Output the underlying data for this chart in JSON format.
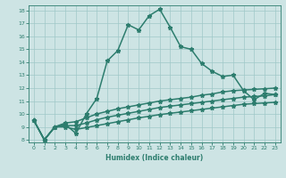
{
  "xlabel": "Humidex (Indice chaleur)",
  "background_color": "#cde4e4",
  "grid_color": "#a0c8c8",
  "line_color": "#2d7d6e",
  "xlim": [
    -0.5,
    23.5
  ],
  "ylim": [
    7.8,
    18.4
  ],
  "yticks": [
    8,
    9,
    10,
    11,
    12,
    13,
    14,
    15,
    16,
    17,
    18
  ],
  "xticks": [
    0,
    1,
    2,
    3,
    4,
    5,
    6,
    7,
    8,
    9,
    10,
    11,
    12,
    13,
    14,
    15,
    16,
    17,
    18,
    19,
    20,
    21,
    22,
    23
  ],
  "series": [
    {
      "x": [
        0,
        1,
        2,
        3,
        4,
        5,
        6,
        7,
        8,
        9,
        10,
        11,
        12,
        13,
        14,
        15,
        16,
        17,
        18,
        19,
        20,
        21,
        22,
        23
      ],
      "y": [
        9.5,
        8.0,
        9.0,
        9.2,
        8.5,
        10.0,
        11.2,
        14.1,
        14.9,
        16.9,
        16.5,
        17.6,
        18.1,
        16.7,
        15.2,
        15.0,
        13.9,
        13.3,
        12.9,
        13.0,
        11.8,
        11.1,
        11.6,
        11.5
      ],
      "style": "-",
      "marker": "*",
      "markersize": 3.5,
      "linewidth": 1.1
    },
    {
      "x": [
        0,
        1,
        2,
        3,
        4,
        5,
        6,
        7,
        8,
        9,
        10,
        11,
        12,
        13,
        14,
        15,
        16,
        17,
        18,
        19,
        20,
        21,
        22,
        23
      ],
      "y": [
        9.5,
        8.0,
        9.0,
        9.3,
        9.4,
        9.7,
        10.0,
        10.2,
        10.4,
        10.55,
        10.7,
        10.85,
        11.0,
        11.1,
        11.2,
        11.3,
        11.45,
        11.55,
        11.7,
        11.8,
        11.85,
        11.9,
        11.95,
        12.0
      ],
      "style": "-",
      "marker": "*",
      "markersize": 3.5,
      "linewidth": 1.1
    },
    {
      "x": [
        0,
        1,
        2,
        3,
        4,
        5,
        6,
        7,
        8,
        9,
        10,
        11,
        12,
        13,
        14,
        15,
        16,
        17,
        18,
        19,
        20,
        21,
        22,
        23
      ],
      "y": [
        9.5,
        8.0,
        9.0,
        9.1,
        9.1,
        9.3,
        9.55,
        9.75,
        9.9,
        10.05,
        10.2,
        10.35,
        10.5,
        10.6,
        10.7,
        10.8,
        10.9,
        11.0,
        11.1,
        11.2,
        11.3,
        11.35,
        11.4,
        11.5
      ],
      "style": "-",
      "marker": "*",
      "markersize": 3.5,
      "linewidth": 1.1
    },
    {
      "x": [
        0,
        1,
        2,
        3,
        4,
        5,
        6,
        7,
        8,
        9,
        10,
        11,
        12,
        13,
        14,
        15,
        16,
        17,
        18,
        19,
        20,
        21,
        22,
        23
      ],
      "y": [
        9.5,
        8.0,
        9.0,
        9.0,
        8.8,
        8.95,
        9.1,
        9.25,
        9.4,
        9.55,
        9.7,
        9.82,
        9.95,
        10.05,
        10.15,
        10.25,
        10.35,
        10.45,
        10.55,
        10.65,
        10.75,
        10.8,
        10.85,
        10.9
      ],
      "style": "-",
      "marker": "*",
      "markersize": 3.5,
      "linewidth": 1.1
    }
  ]
}
